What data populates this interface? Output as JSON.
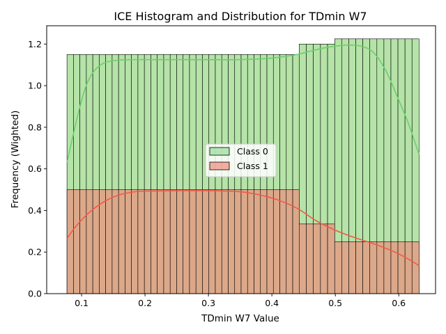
{
  "chart_data": {
    "type": "histogram",
    "title": "ICE Histogram and Distribution for TDmin W7",
    "xlabel": "TDmin W7 Value",
    "ylabel": "Frequency (Wighted)",
    "xlim": [
      0.045,
      0.658
    ],
    "ylim": [
      0.0,
      1.288
    ],
    "xticks": [
      0.1,
      0.2,
      0.3,
      0.4,
      0.5,
      0.6
    ],
    "yticks": [
      0.0,
      0.2,
      0.4,
      0.6,
      0.8,
      1.0,
      1.2
    ],
    "xtick_labels": [
      "0.1",
      "0.2",
      "0.3",
      "0.4",
      "0.5",
      "0.6"
    ],
    "ytick_labels": [
      "0.0",
      "0.2",
      "0.4",
      "0.6",
      "0.8",
      "1.0",
      "1.2"
    ],
    "legend_position": "center",
    "series": [
      {
        "name": "Class 0",
        "color": "#7fd67f",
        "bins": [
          {
            "x0": 0.077,
            "x1": 0.443,
            "count": 36,
            "value": 1.15
          },
          {
            "x0": 0.443,
            "x1": 0.499,
            "count": 5,
            "value": 1.2
          },
          {
            "x0": 0.499,
            "x1": 0.632,
            "count": 12,
            "value": 1.225
          }
        ],
        "kde": {
          "x": [
            0.077,
            0.085,
            0.095,
            0.105,
            0.115,
            0.13,
            0.15,
            0.18,
            0.21,
            0.25,
            0.3,
            0.35,
            0.39,
            0.42,
            0.44,
            0.46,
            0.48,
            0.5,
            0.52,
            0.54,
            0.56,
            0.58,
            0.6,
            0.615,
            0.632
          ],
          "y": [
            0.63,
            0.74,
            0.87,
            0.98,
            1.05,
            1.1,
            1.12,
            1.125,
            1.125,
            1.125,
            1.125,
            1.125,
            1.13,
            1.14,
            1.15,
            1.165,
            1.18,
            1.19,
            1.195,
            1.19,
            1.16,
            1.07,
            0.93,
            0.82,
            0.67
          ]
        }
      },
      {
        "name": "Class 1",
        "color": "#f07a6a",
        "bins": [
          {
            "x0": 0.077,
            "x1": 0.443,
            "count": 36,
            "value": 0.5
          },
          {
            "x0": 0.443,
            "x1": 0.499,
            "count": 5,
            "value": 0.335
          },
          {
            "x0": 0.499,
            "x1": 0.632,
            "count": 12,
            "value": 0.25
          }
        ],
        "kde": {
          "x": [
            0.077,
            0.09,
            0.105,
            0.12,
            0.14,
            0.16,
            0.18,
            0.2,
            0.25,
            0.3,
            0.35,
            0.38,
            0.41,
            0.44,
            0.47,
            0.5,
            0.53,
            0.56,
            0.59,
            0.61,
            0.632
          ],
          "y": [
            0.265,
            0.32,
            0.37,
            0.41,
            0.45,
            0.475,
            0.488,
            0.493,
            0.495,
            0.495,
            0.49,
            0.475,
            0.45,
            0.41,
            0.35,
            0.305,
            0.27,
            0.24,
            0.205,
            0.175,
            0.135
          ]
        }
      }
    ],
    "overlap_color": "#dca88a"
  }
}
